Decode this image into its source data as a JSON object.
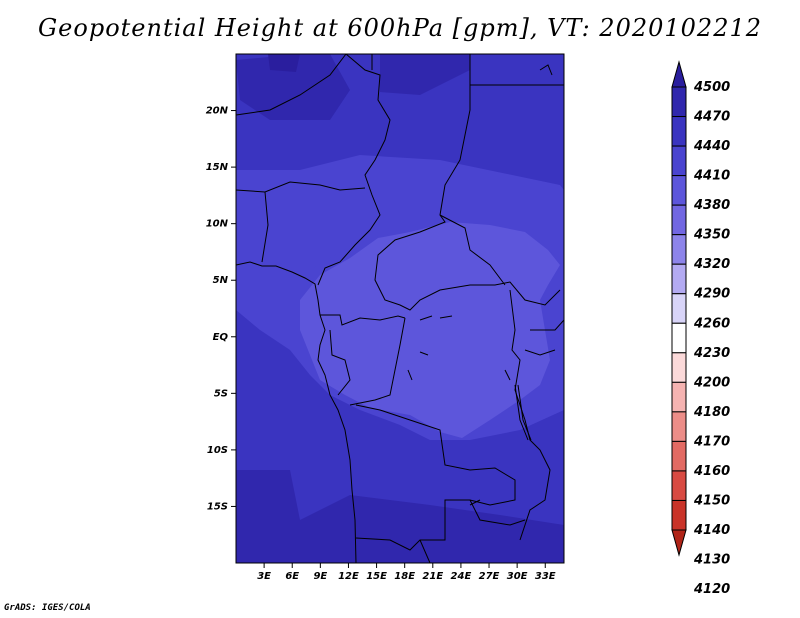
{
  "title": "Geopotential Height at 600hPa [gpm], VT: 2020102212",
  "footer": "GrADS: IGES/COLA",
  "map": {
    "lat_range": [
      -20,
      25
    ],
    "lon_range": [
      0,
      35
    ],
    "lat_ticks": [
      {
        "value": 20,
        "label": "20N"
      },
      {
        "value": 15,
        "label": "15N"
      },
      {
        "value": 10,
        "label": "10N"
      },
      {
        "value": 5,
        "label": "5N"
      },
      {
        "value": 0,
        "label": "EQ"
      },
      {
        "value": -5,
        "label": "5S"
      },
      {
        "value": -10,
        "label": "10S"
      },
      {
        "value": -15,
        "label": "15S"
      }
    ],
    "lon_ticks": [
      {
        "value": 3,
        "label": "3E"
      },
      {
        "value": 6,
        "label": "6E"
      },
      {
        "value": 9,
        "label": "9E"
      },
      {
        "value": 12,
        "label": "12E"
      },
      {
        "value": 15,
        "label": "15E"
      },
      {
        "value": 18,
        "label": "18E"
      },
      {
        "value": 21,
        "label": "21E"
      },
      {
        "value": 24,
        "label": "24E"
      },
      {
        "value": 27,
        "label": "27E"
      },
      {
        "value": 30,
        "label": "30E"
      },
      {
        "value": 33,
        "label": "33E"
      }
    ]
  },
  "colorbar": {
    "levels": [
      "4500",
      "4470",
      "4440",
      "4410",
      "4380",
      "4350",
      "4320",
      "4290",
      "4260",
      "4230",
      "4200",
      "4180",
      "4170",
      "4160",
      "4150",
      "4140",
      "4130",
      "4120"
    ],
    "colors": [
      "#2a1e9e",
      "#3027ad",
      "#3a34c0",
      "#4a44d0",
      "#5d56db",
      "#7267e2",
      "#8d84ea",
      "#b3aaf2",
      "#d8d4f8",
      "#ffffff",
      "#fbd9d9",
      "#f5b3b1",
      "#ec8d88",
      "#e26a63",
      "#d84a42",
      "#c93328",
      "#b02418"
    ]
  }
}
